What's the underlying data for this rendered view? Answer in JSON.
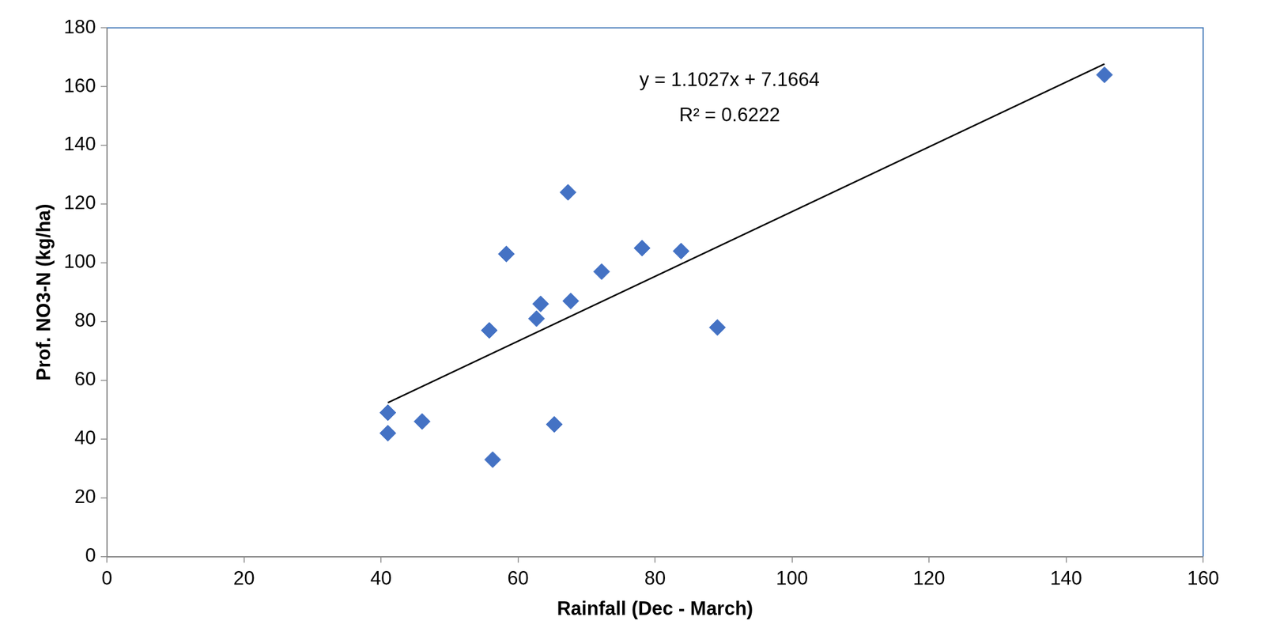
{
  "chart_data": {
    "type": "scatter",
    "x_label": "Rainfall (Dec - March)",
    "y_label": "Prof. NO3-N (kg/ha)",
    "annotations": [
      "y = 1.1027x + 7.1664",
      "R² = 0.6222"
    ],
    "series": [
      {
        "type": "scatter",
        "color": "#4472c4",
        "marker": "diamond",
        "x": [
          41,
          41,
          46,
          55.8,
          56.3,
          58.3,
          62.7,
          63.3,
          65.3,
          67.3,
          67.7,
          72.2,
          78.1,
          83.8,
          89.1,
          145.6
        ],
        "values": [
          49,
          42,
          46,
          77,
          33,
          103,
          81,
          86,
          45,
          124,
          87,
          97,
          105,
          104,
          78,
          164
        ]
      },
      {
        "type": "line",
        "color": "#000000",
        "line_style": "solid",
        "x": [
          41,
          145.6
        ],
        "values": [
          52.4,
          167.7
        ]
      }
    ],
    "xlim": [
      0,
      160
    ],
    "xticks": [
      0,
      20,
      40,
      60,
      80,
      100,
      120,
      140,
      160
    ],
    "ylim": [
      0,
      180
    ],
    "yticks": [
      0,
      20,
      40,
      60,
      80,
      100,
      120,
      140,
      160,
      180
    ],
    "grid": false
  }
}
